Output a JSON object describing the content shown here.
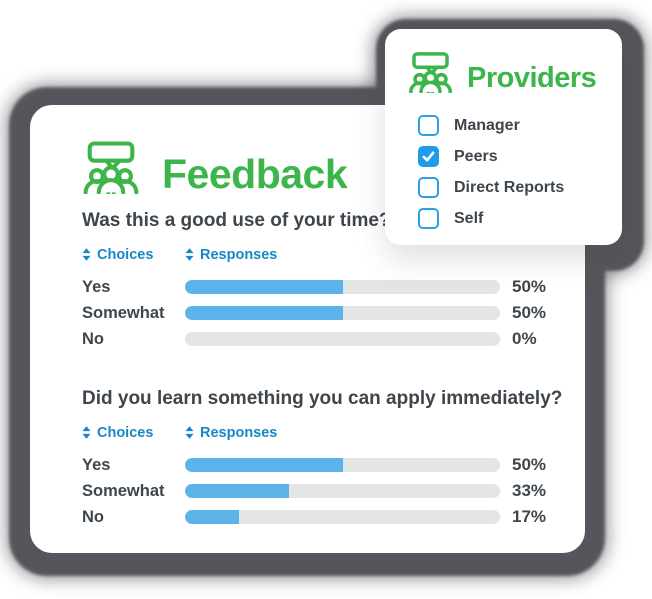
{
  "colors": {
    "brand_green": "#3cb54a",
    "bar_blue": "#5cb3ea",
    "column_header_blue": "#1787c8",
    "checkbox_blue": "#1e9ce9",
    "bar_track_gray": "#e3e4e5",
    "text_dark": "#3e464d",
    "shadow_gray": "#55565b"
  },
  "feedback_card": {
    "title": "Feedback",
    "icon": "feedback-people-icon",
    "questions": [
      {
        "text": "Was this a good use of your time?",
        "columns": {
          "choices": "Choices",
          "responses": "Responses"
        },
        "rows": [
          {
            "choice": "Yes",
            "percent": 50,
            "percent_label": "50%"
          },
          {
            "choice": "Somewhat",
            "percent": 50,
            "percent_label": "50%"
          },
          {
            "choice": "No",
            "percent": 0,
            "percent_label": "0%"
          }
        ]
      },
      {
        "text": "Did you learn something you can apply immediately?",
        "columns": {
          "choices": "Choices",
          "responses": "Responses"
        },
        "rows": [
          {
            "choice": "Yes",
            "percent": 50,
            "percent_label": "50%"
          },
          {
            "choice": "Somewhat",
            "percent": 33,
            "percent_label": "33%"
          },
          {
            "choice": "No",
            "percent": 17,
            "percent_label": "17%"
          }
        ]
      }
    ]
  },
  "providers_card": {
    "title": "Providers",
    "icon": "providers-people-icon",
    "options": [
      {
        "label": "Manager",
        "checked": false
      },
      {
        "label": "Peers",
        "checked": true
      },
      {
        "label": "Direct Reports",
        "checked": false
      },
      {
        "label": "Self",
        "checked": false
      }
    ]
  },
  "chart_data": [
    {
      "type": "bar",
      "orientation": "horizontal",
      "title": "Was this a good use of your time?",
      "categories": [
        "Yes",
        "Somewhat",
        "No"
      ],
      "values": [
        50,
        50,
        0
      ],
      "value_labels": [
        "50%",
        "50%",
        "0%"
      ],
      "xlim": [
        0,
        100
      ],
      "columns": [
        "Choices",
        "Responses"
      ],
      "legend": "none",
      "grid": false
    },
    {
      "type": "bar",
      "orientation": "horizontal",
      "title": "Did you learn something you can apply immediately?",
      "categories": [
        "Yes",
        "Somewhat",
        "No"
      ],
      "values": [
        50,
        33,
        17
      ],
      "value_labels": [
        "50%",
        "33%",
        "17%"
      ],
      "xlim": [
        0,
        100
      ],
      "columns": [
        "Choices",
        "Responses"
      ],
      "legend": "none",
      "grid": false
    }
  ]
}
